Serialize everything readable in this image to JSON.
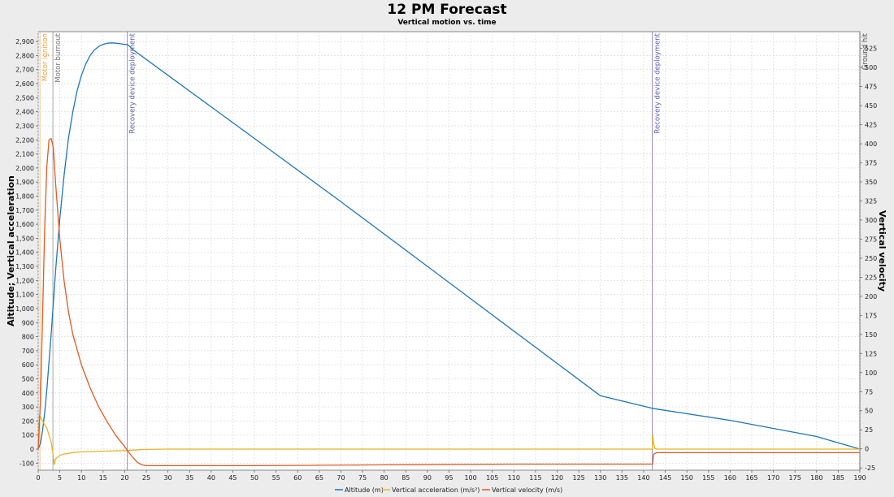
{
  "chart_data": {
    "type": "line",
    "title": "12 PM Forecast",
    "subtitle": "Vertical motion vs. time",
    "xlabel": "",
    "ylabel_left": "Altitude; Vertical acceleration",
    "ylabel_right": "Vertical velocity",
    "xlim": [
      0,
      190
    ],
    "ylim_left": [
      -150,
      2970
    ],
    "ylim_right": [
      -28,
      547
    ],
    "x_ticks": [
      "0",
      "5",
      "10",
      "15",
      "20",
      "25",
      "30",
      "35",
      "40",
      "45",
      "50",
      "55",
      "60",
      "65",
      "70",
      "75",
      "80",
      "85",
      "90",
      "95",
      "100",
      "105",
      "110",
      "115",
      "120",
      "125",
      "130",
      "135",
      "140",
      "145",
      "150",
      "155",
      "160",
      "165",
      "170",
      "175",
      "180",
      "185",
      "190"
    ],
    "y_left_ticks": [
      "-100",
      "0",
      "100",
      "200",
      "300",
      "400",
      "500",
      "600",
      "700",
      "800",
      "900",
      "1,000",
      "1,100",
      "1,200",
      "1,300",
      "1,400",
      "1,500",
      "1,600",
      "1,700",
      "1,800",
      "1,900",
      "2,000",
      "2,100",
      "2,200",
      "2,300",
      "2,400",
      "2,500",
      "2,600",
      "2,700",
      "2,800",
      "2,900"
    ],
    "y_right_ticks": [
      "-25",
      "0",
      "25",
      "50",
      "75",
      "100",
      "125",
      "150",
      "175",
      "200",
      "225",
      "250",
      "275",
      "300",
      "325",
      "350",
      "375",
      "400",
      "425",
      "450",
      "475",
      "500",
      "525"
    ],
    "grid": true,
    "legend_position": "bottom",
    "series": [
      {
        "name": "Altitude (m)",
        "axis": "left",
        "color": "#1f77b4",
        "x": [
          0,
          0.5,
          1,
          1.5,
          2,
          3,
          4,
          5,
          6,
          7,
          8,
          9,
          10,
          11,
          12,
          13,
          14,
          15,
          16,
          17,
          18,
          19,
          20,
          20.5,
          21,
          22,
          30,
          50,
          70,
          90,
          110,
          130,
          142,
          143,
          160,
          180,
          190
        ],
        "values": [
          0,
          40,
          130,
          260,
          420,
          820,
          1260,
          1640,
          1950,
          2210,
          2400,
          2550,
          2660,
          2740,
          2800,
          2840,
          2865,
          2880,
          2888,
          2890,
          2888,
          2884,
          2880,
          2880,
          2870,
          2840,
          2660,
          2210,
          1760,
          1300,
          840,
          380,
          290,
          285,
          205,
          90,
          0
        ]
      },
      {
        "name": "Vertical acceleration (m/s²)",
        "axis": "left",
        "color": "#e8b424",
        "x": [
          0,
          0.3,
          1,
          2,
          3,
          3.4,
          3.7,
          4,
          5,
          6,
          8,
          10,
          15,
          20,
          25,
          30,
          60,
          100,
          142,
          142.1,
          142.3,
          142.6,
          143,
          190
        ],
        "values": [
          0,
          240,
          200,
          150,
          50,
          -30,
          -110,
          -70,
          -45,
          -35,
          -25,
          -20,
          -15,
          -10,
          -2,
          0,
          0,
          0,
          0,
          105,
          40,
          5,
          0,
          0
        ]
      },
      {
        "name": "Vertical velocity (m/s)",
        "axis": "right",
        "color": "#e05a23",
        "x": [
          0,
          0.5,
          1,
          1.5,
          2,
          2.5,
          3,
          3.5,
          4,
          5,
          6,
          7,
          8,
          10,
          12,
          14,
          16,
          18,
          20,
          21,
          22,
          23,
          24,
          25,
          30,
          50,
          80,
          110,
          130,
          142,
          142.05,
          142.3,
          143,
          190
        ],
        "values": [
          0,
          60,
          170,
          290,
          370,
          405,
          407,
          395,
          350,
          275,
          220,
          180,
          150,
          110,
          80,
          55,
          35,
          17,
          3,
          -5,
          -12,
          -18,
          -21,
          -22,
          -22,
          -22,
          -21,
          -20,
          -20,
          -20,
          -20,
          -7,
          -5,
          -5
        ]
      }
    ],
    "events": [
      {
        "label": "Motor ignition",
        "x": 0.4,
        "color": "#f0a040"
      },
      {
        "label": "Motor burnout",
        "x": 3.4,
        "color": "#777777"
      },
      {
        "label": "Recovery device deployment",
        "x": 20.6,
        "color": "#5a5aa8"
      },
      {
        "label": "Recovery device deployment",
        "x": 142.0,
        "color": "#5a5aa8"
      },
      {
        "label": "Ground hit",
        "x": 190.0,
        "color": "#555555"
      }
    ]
  }
}
